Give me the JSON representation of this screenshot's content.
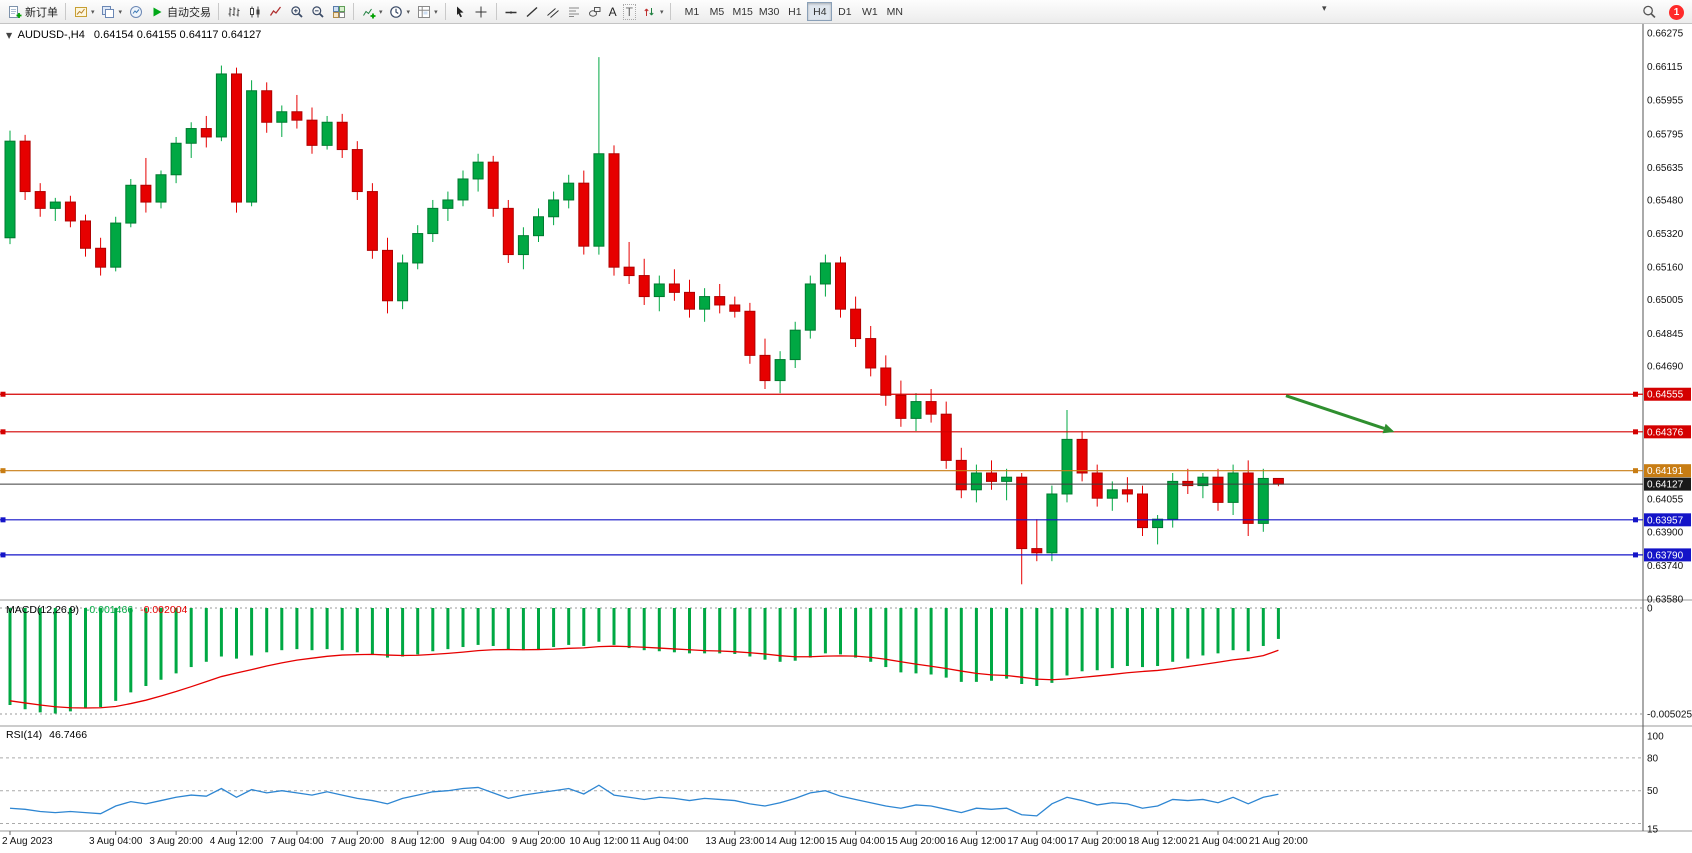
{
  "ui": {
    "toolbar": {
      "new_order_label": "新订单",
      "autotrading_label": "自动交易",
      "text_tool_label": "A",
      "label_tool_label": "T",
      "timeframes": [
        "M1",
        "M5",
        "M15",
        "M30",
        "H1",
        "H4",
        "D1",
        "W1",
        "MN"
      ],
      "active_timeframe": "H4",
      "notification_count": "1"
    },
    "chart_header": {
      "symbol_period": "AUDUSD-,H4",
      "ohlc": "0.64154 0.64155 0.64117 0.64127"
    },
    "macd_header": {
      "name": "MACD(12,26,9)",
      "main_value": "-0.001466",
      "signal_value": "-0.002004"
    },
    "rsi_header": {
      "name": "RSI(14)",
      "value": "46.7466"
    }
  },
  "chart_data": {
    "type": "candlestick",
    "symbol": "AUDUSD",
    "period": "H4",
    "up_color": "#00a843",
    "down_color": "#e60000",
    "price_axis": {
      "max": 0.66275,
      "min": 0.6358,
      "tick_labels": [
        "0.66275",
        "0.66115",
        "0.65955",
        "0.65795",
        "0.65635",
        "0.65480",
        "0.65320",
        "0.65160",
        "0.65005",
        "0.64845",
        "0.64690",
        "0.64055",
        "0.63900",
        "0.63740",
        "0.63580"
      ]
    },
    "candles_ohlc": [
      [
        0.653,
        0.6581,
        0.6527,
        0.6576
      ],
      [
        0.6576,
        0.6579,
        0.6548,
        0.6552
      ],
      [
        0.6552,
        0.6556,
        0.654,
        0.6544
      ],
      [
        0.6544,
        0.6549,
        0.6538,
        0.6547
      ],
      [
        0.6547,
        0.655,
        0.6535,
        0.6538
      ],
      [
        0.6538,
        0.6541,
        0.6521,
        0.6525
      ],
      [
        0.6525,
        0.653,
        0.6512,
        0.6516
      ],
      [
        0.6516,
        0.654,
        0.6514,
        0.6537
      ],
      [
        0.6537,
        0.6558,
        0.6535,
        0.6555
      ],
      [
        0.6555,
        0.6568,
        0.6542,
        0.6547
      ],
      [
        0.6547,
        0.6562,
        0.6544,
        0.656
      ],
      [
        0.656,
        0.6578,
        0.6556,
        0.6575
      ],
      [
        0.6575,
        0.6585,
        0.6568,
        0.6582
      ],
      [
        0.6582,
        0.6588,
        0.6573,
        0.6578
      ],
      [
        0.6578,
        0.6612,
        0.6576,
        0.6608
      ],
      [
        0.6608,
        0.6611,
        0.6542,
        0.6547
      ],
      [
        0.6547,
        0.6605,
        0.6545,
        0.66
      ],
      [
        0.66,
        0.6604,
        0.658,
        0.6585
      ],
      [
        0.6585,
        0.6593,
        0.6578,
        0.659
      ],
      [
        0.659,
        0.6598,
        0.6582,
        0.6586
      ],
      [
        0.6586,
        0.6592,
        0.657,
        0.6574
      ],
      [
        0.6574,
        0.6588,
        0.6572,
        0.6585
      ],
      [
        0.6585,
        0.6589,
        0.6568,
        0.6572
      ],
      [
        0.6572,
        0.6576,
        0.6548,
        0.6552
      ],
      [
        0.6552,
        0.6556,
        0.652,
        0.6524
      ],
      [
        0.6524,
        0.653,
        0.6494,
        0.65
      ],
      [
        0.65,
        0.6522,
        0.6496,
        0.6518
      ],
      [
        0.6518,
        0.6536,
        0.6515,
        0.6532
      ],
      [
        0.6532,
        0.6548,
        0.6528,
        0.6544
      ],
      [
        0.6544,
        0.6552,
        0.6538,
        0.6548
      ],
      [
        0.6548,
        0.6562,
        0.6545,
        0.6558
      ],
      [
        0.6558,
        0.657,
        0.6552,
        0.6566
      ],
      [
        0.6566,
        0.6569,
        0.654,
        0.6544
      ],
      [
        0.6544,
        0.6548,
        0.6518,
        0.6522
      ],
      [
        0.6522,
        0.6535,
        0.6515,
        0.6531
      ],
      [
        0.6531,
        0.6544,
        0.6528,
        0.654
      ],
      [
        0.654,
        0.6552,
        0.6536,
        0.6548
      ],
      [
        0.6548,
        0.656,
        0.6544,
        0.6556
      ],
      [
        0.6556,
        0.6562,
        0.6522,
        0.6526
      ],
      [
        0.6526,
        0.6616,
        0.6522,
        0.657
      ],
      [
        0.657,
        0.6574,
        0.6512,
        0.6516
      ],
      [
        0.6516,
        0.6528,
        0.6508,
        0.6512
      ],
      [
        0.6512,
        0.652,
        0.6498,
        0.6502
      ],
      [
        0.6502,
        0.6512,
        0.6495,
        0.6508
      ],
      [
        0.6508,
        0.6515,
        0.65,
        0.6504
      ],
      [
        0.6504,
        0.651,
        0.6492,
        0.6496
      ],
      [
        0.6496,
        0.6506,
        0.649,
        0.6502
      ],
      [
        0.6502,
        0.6508,
        0.6494,
        0.6498
      ],
      [
        0.6498,
        0.6502,
        0.6492,
        0.6495
      ],
      [
        0.6495,
        0.6499,
        0.647,
        0.6474
      ],
      [
        0.6474,
        0.6482,
        0.6458,
        0.6462
      ],
      [
        0.6462,
        0.6476,
        0.6456,
        0.6472
      ],
      [
        0.6472,
        0.649,
        0.6468,
        0.6486
      ],
      [
        0.6486,
        0.6512,
        0.6482,
        0.6508
      ],
      [
        0.6508,
        0.6522,
        0.6502,
        0.6518
      ],
      [
        0.6518,
        0.6521,
        0.6492,
        0.6496
      ],
      [
        0.6496,
        0.6502,
        0.6478,
        0.6482
      ],
      [
        0.6482,
        0.6488,
        0.6464,
        0.6468
      ],
      [
        0.6468,
        0.6474,
        0.645,
        0.6455
      ],
      [
        0.6455,
        0.6462,
        0.644,
        0.6444
      ],
      [
        0.6444,
        0.6456,
        0.6438,
        0.6452
      ],
      [
        0.6452,
        0.6458,
        0.6442,
        0.6446
      ],
      [
        0.6446,
        0.6452,
        0.642,
        0.6424
      ],
      [
        0.6424,
        0.643,
        0.6406,
        0.641
      ],
      [
        0.641,
        0.6422,
        0.6404,
        0.6418
      ],
      [
        0.6418,
        0.6424,
        0.641,
        0.6414
      ],
      [
        0.6414,
        0.642,
        0.6405,
        0.6416
      ],
      [
        0.6416,
        0.6418,
        0.6365,
        0.6382
      ],
      [
        0.6382,
        0.6396,
        0.6376,
        0.638
      ],
      [
        0.638,
        0.6412,
        0.6376,
        0.6408
      ],
      [
        0.6408,
        0.6448,
        0.6404,
        0.6434
      ],
      [
        0.6434,
        0.6438,
        0.6414,
        0.6418
      ],
      [
        0.6418,
        0.6422,
        0.6402,
        0.6406
      ],
      [
        0.6406,
        0.6414,
        0.64,
        0.641
      ],
      [
        0.641,
        0.6416,
        0.6404,
        0.6408
      ],
      [
        0.6408,
        0.6412,
        0.6388,
        0.6392
      ],
      [
        0.6392,
        0.6398,
        0.6384,
        0.6396
      ],
      [
        0.6396,
        0.6418,
        0.6392,
        0.6414
      ],
      [
        0.6414,
        0.642,
        0.6408,
        0.6412
      ],
      [
        0.6412,
        0.6418,
        0.6406,
        0.6416
      ],
      [
        0.6416,
        0.642,
        0.64,
        0.6404
      ],
      [
        0.6404,
        0.6422,
        0.6398,
        0.6418
      ],
      [
        0.6418,
        0.6424,
        0.6388,
        0.6394
      ],
      [
        0.6394,
        0.642,
        0.639,
        0.64154
      ],
      [
        0.64154,
        0.64155,
        0.64117,
        0.64127
      ]
    ],
    "time_labels": [
      {
        "i": 0,
        "t": "2 Aug 2023"
      },
      {
        "i": 7,
        "t": "3 Aug 04:00"
      },
      {
        "i": 11,
        "t": "3 Aug 20:00"
      },
      {
        "i": 15,
        "t": "4 Aug 12:00"
      },
      {
        "i": 19,
        "t": "7 Aug 04:00"
      },
      {
        "i": 23,
        "t": "7 Aug 20:00"
      },
      {
        "i": 27,
        "t": "8 Aug 12:00"
      },
      {
        "i": 31,
        "t": "9 Aug 04:00"
      },
      {
        "i": 35,
        "t": "9 Aug 20:00"
      },
      {
        "i": 39,
        "t": "10 Aug 12:00"
      },
      {
        "i": 43,
        "t": "11 Aug 04:00"
      },
      {
        "i": 48,
        "t": "13 Aug 23:00"
      },
      {
        "i": 52,
        "t": "14 Aug 12:00"
      },
      {
        "i": 56,
        "t": "15 Aug 04:00"
      },
      {
        "i": 60,
        "t": "15 Aug 20:00"
      },
      {
        "i": 64,
        "t": "16 Aug 12:00"
      },
      {
        "i": 68,
        "t": "17 Aug 04:00"
      },
      {
        "i": 72,
        "t": "17 Aug 20:00"
      },
      {
        "i": 76,
        "t": "18 Aug 12:00"
      },
      {
        "i": 80,
        "t": "21 Aug 04:00"
      },
      {
        "i": 84,
        "t": "21 Aug 20:00"
      }
    ],
    "horizontal_lines": [
      {
        "price": 0.64555,
        "label": "0.64555",
        "color": "#d40000"
      },
      {
        "price": 0.64376,
        "label": "0.64376",
        "color": "#d40000"
      },
      {
        "price": 0.64191,
        "label": "0.64191",
        "color": "#c87d14"
      },
      {
        "price": 0.63957,
        "label": "0.63957",
        "color": "#1414c8"
      },
      {
        "price": 0.6379,
        "label": "0.63790",
        "color": "#1414c8"
      }
    ],
    "bid_line": {
      "price": 0.64127,
      "label": "0.64127",
      "color": "#3c3c3c",
      "tag_bg": "#1a1a1a"
    },
    "arrow_annotation": {
      "from_index": 84.5,
      "from_price": 0.64548,
      "to_index": 91.0,
      "to_price": 0.64392,
      "color": "#2f8f2f"
    },
    "macd": {
      "scale_max": 0,
      "scale_min": -0.005025,
      "scale_labels": [
        {
          "v": 0,
          "t": "0"
        },
        {
          "v": -0.005025,
          "t": "-0.005025"
        }
      ],
      "histogram_color": "#00a843",
      "signal_color": "#e60000",
      "histogram": [
        -0.0046,
        -0.0048,
        -0.00495,
        -0.005,
        -0.0049,
        -0.00475,
        -0.0047,
        -0.0044,
        -0.004,
        -0.0037,
        -0.0034,
        -0.0031,
        -0.0028,
        -0.00255,
        -0.0023,
        -0.0024,
        -0.00225,
        -0.0021,
        -0.002,
        -0.00195,
        -0.002,
        -0.00195,
        -0.002,
        -0.0021,
        -0.0022,
        -0.00235,
        -0.0023,
        -0.0022,
        -0.00205,
        -0.00195,
        -0.00185,
        -0.00175,
        -0.0018,
        -0.00195,
        -0.002,
        -0.00195,
        -0.00185,
        -0.00175,
        -0.0018,
        -0.0016,
        -0.00175,
        -0.0019,
        -0.002,
        -0.00205,
        -0.0021,
        -0.00215,
        -0.00215,
        -0.00215,
        -0.00218,
        -0.0023,
        -0.00245,
        -0.00255,
        -0.0025,
        -0.00235,
        -0.00215,
        -0.0022,
        -0.00235,
        -0.00255,
        -0.0028,
        -0.00305,
        -0.0031,
        -0.00315,
        -0.0033,
        -0.0035,
        -0.0035,
        -0.00345,
        -0.00335,
        -0.0036,
        -0.0037,
        -0.00355,
        -0.0032,
        -0.003,
        -0.00295,
        -0.00285,
        -0.00275,
        -0.0028,
        -0.00275,
        -0.00255,
        -0.0024,
        -0.00225,
        -0.00215,
        -0.002,
        -0.00205,
        -0.0018,
        -0.001466
      ],
      "signal": [
        -0.0044,
        -0.0045,
        -0.0046,
        -0.00468,
        -0.00473,
        -0.00474,
        -0.00473,
        -0.00467,
        -0.00453,
        -0.00437,
        -0.00417,
        -0.00396,
        -0.00373,
        -0.00349,
        -0.00325,
        -0.00308,
        -0.00292,
        -0.00275,
        -0.0026,
        -0.00247,
        -0.00238,
        -0.00229,
        -0.00223,
        -0.00221,
        -0.0022,
        -0.00223,
        -0.00225,
        -0.00224,
        -0.0022,
        -0.00215,
        -0.00209,
        -0.00202,
        -0.00198,
        -0.00197,
        -0.00198,
        -0.00197,
        -0.00195,
        -0.00191,
        -0.00189,
        -0.00183,
        -0.00181,
        -0.00183,
        -0.00186,
        -0.0019,
        -0.00194,
        -0.00198,
        -0.00202,
        -0.00204,
        -0.00207,
        -0.00212,
        -0.00218,
        -0.00226,
        -0.00231,
        -0.00231,
        -0.00228,
        -0.00227,
        -0.00228,
        -0.00234,
        -0.00243,
        -0.00255,
        -0.00266,
        -0.00276,
        -0.00287,
        -0.00299,
        -0.0031,
        -0.00317,
        -0.0032,
        -0.00328,
        -0.00337,
        -0.0034,
        -0.00336,
        -0.00329,
        -0.00322,
        -0.00315,
        -0.00307,
        -0.00301,
        -0.00296,
        -0.00288,
        -0.00278,
        -0.00268,
        -0.00257,
        -0.00246,
        -0.00238,
        -0.00226,
        -0.002004
      ]
    },
    "rsi": {
      "scale_max": 100,
      "scale_min": 15,
      "levels": [
        80,
        50,
        20
      ],
      "scale_labels": [
        {
          "v": 100,
          "t": "100"
        },
        {
          "v": 80,
          "t": "80"
        },
        {
          "v": 50,
          "t": "50"
        },
        {
          "v": 15,
          "t": "15"
        }
      ],
      "color": "#2e86d2",
      "values": [
        34,
        33,
        31,
        30,
        31,
        30,
        29,
        36,
        40,
        38,
        41,
        44,
        46,
        45,
        52,
        44,
        51,
        48,
        50,
        48,
        46,
        49,
        46,
        43,
        41,
        38,
        43,
        46,
        49,
        50,
        52,
        53,
        48,
        43,
        46,
        48,
        50,
        52,
        47,
        55,
        46,
        44,
        42,
        44,
        43,
        41,
        43,
        42,
        41,
        38,
        36,
        39,
        43,
        48,
        50,
        45,
        42,
        39,
        36,
        34,
        37,
        36,
        33,
        30,
        34,
        33,
        34,
        28,
        27,
        38,
        44,
        41,
        37,
        39,
        38,
        34,
        36,
        42,
        41,
        42,
        39,
        44,
        38,
        44,
        46.7466
      ]
    }
  }
}
